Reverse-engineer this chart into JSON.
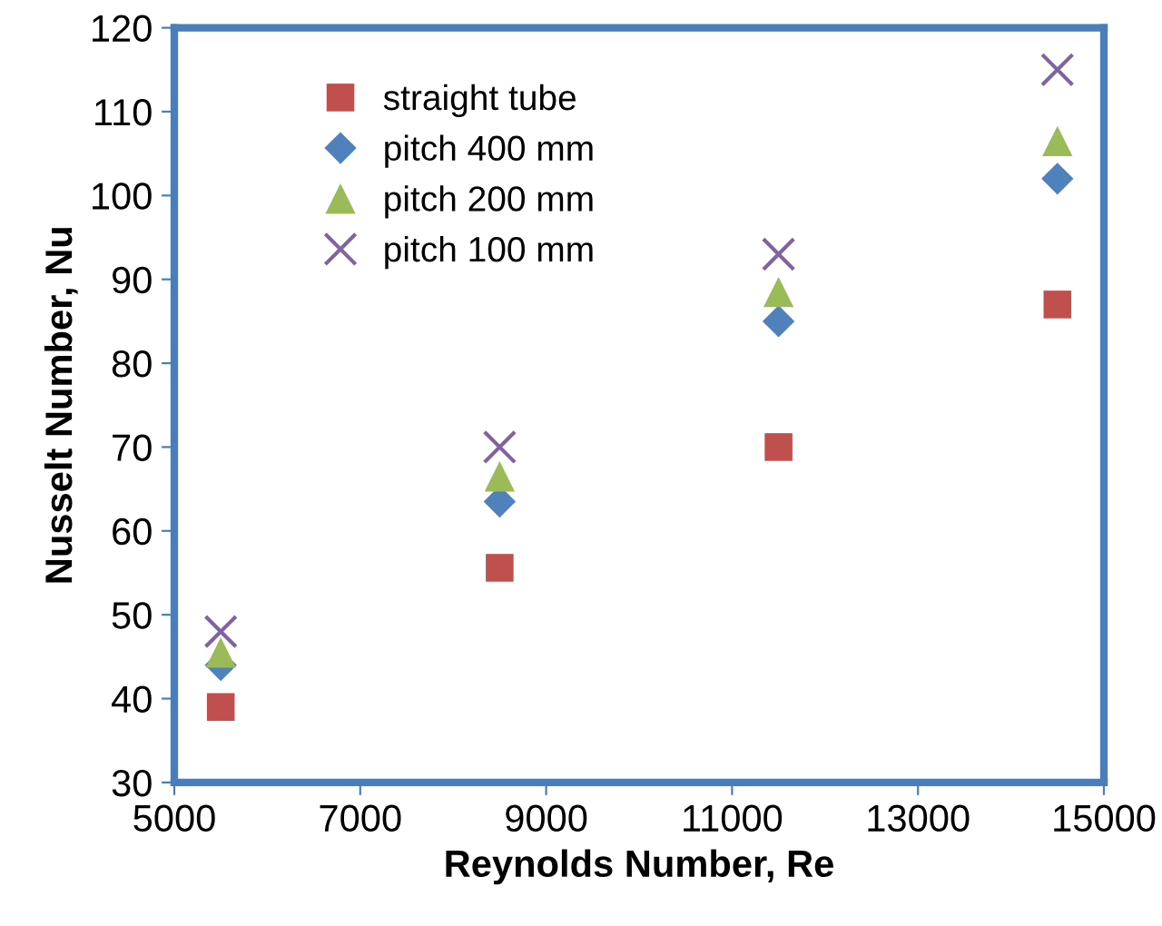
{
  "chart_data": {
    "type": "scatter",
    "xlabel": "Reynolds Number, Re",
    "ylabel": "Nusselt Number, Nu",
    "x": [
      5500,
      8500,
      11500,
      14500
    ],
    "series": [
      {
        "name": "straight tube",
        "color": "#c0504d",
        "marker": "square",
        "values": [
          39,
          55.6,
          70,
          87
        ]
      },
      {
        "name": "pitch 400 mm",
        "color": "#4f81bd",
        "marker": "diamond",
        "values": [
          44,
          63.5,
          85,
          102
        ]
      },
      {
        "name": "pitch 200 mm",
        "color": "#9bbb59",
        "marker": "triangle",
        "values": [
          45.5,
          66.5,
          88.5,
          106.5
        ]
      },
      {
        "name": "pitch 100 mm",
        "color": "#8064a2",
        "marker": "cross",
        "values": [
          48,
          70,
          93,
          115
        ]
      }
    ],
    "xlim": [
      5000,
      15000
    ],
    "xticks": [
      5000,
      7000,
      9000,
      11000,
      13000,
      15000
    ],
    "ylim": [
      30,
      120
    ],
    "yticks": [
      30,
      40,
      50,
      60,
      70,
      80,
      90,
      100,
      110,
      120
    ],
    "grid": false,
    "legend": "top left"
  }
}
